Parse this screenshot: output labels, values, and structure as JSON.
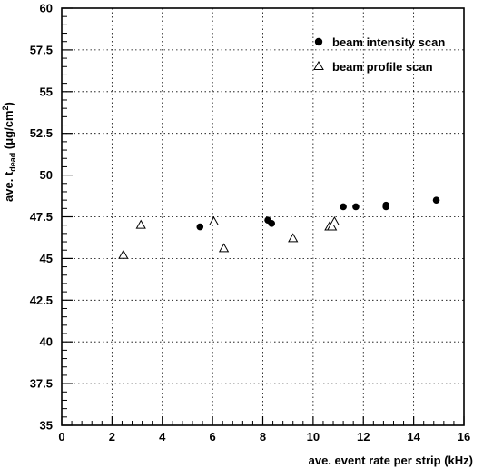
{
  "chart_data": {
    "type": "scatter",
    "xlabel": "ave. event rate per strip (kHz)",
    "ylabel": {
      "prefix": "ave. t",
      "subscript": "dead",
      "unit_open": " (",
      "unit_main": "μg/cm",
      "unit_sup": "2",
      "unit_close": ")"
    },
    "xlim": [
      0,
      16
    ],
    "ylim": [
      35,
      60
    ],
    "x_ticks": [
      "0",
      "2",
      "4",
      "6",
      "8",
      "10",
      "12",
      "14",
      "16"
    ],
    "y_ticks": [
      "35",
      "37.5",
      "40",
      "42.5",
      "45",
      "47.5",
      "50",
      "52.5",
      "55",
      "57.5",
      "60"
    ],
    "grid": true,
    "legend_position": "top-right",
    "series": [
      {
        "name": "beam intensity scan",
        "marker": "filled-circle",
        "color": "#000000",
        "points": [
          {
            "x": 5.5,
            "y": 46.9
          },
          {
            "x": 8.2,
            "y": 47.3
          },
          {
            "x": 8.35,
            "y": 47.1
          },
          {
            "x": 11.2,
            "y": 48.1
          },
          {
            "x": 11.7,
            "y": 48.1
          },
          {
            "x": 12.9,
            "y": 48.1
          },
          {
            "x": 12.9,
            "y": 48.2
          },
          {
            "x": 14.9,
            "y": 48.5
          }
        ]
      },
      {
        "name": "beam profile scan",
        "marker": "open-triangle",
        "color": "#000000",
        "points": [
          {
            "x": 2.45,
            "y": 45.2
          },
          {
            "x": 3.15,
            "y": 47.0
          },
          {
            "x": 6.05,
            "y": 47.2
          },
          {
            "x": 6.45,
            "y": 45.6
          },
          {
            "x": 9.2,
            "y": 46.2
          },
          {
            "x": 10.65,
            "y": 46.9
          },
          {
            "x": 10.75,
            "y": 46.9
          },
          {
            "x": 10.85,
            "y": 47.2
          }
        ]
      }
    ]
  }
}
